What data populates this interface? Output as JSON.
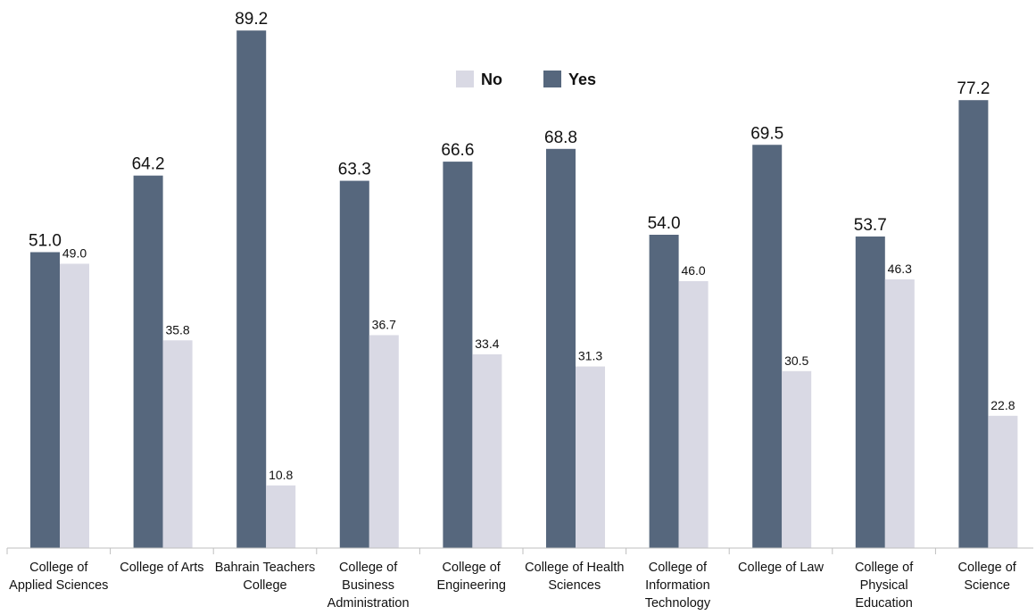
{
  "chart_data": {
    "type": "bar",
    "title": "",
    "xlabel": "",
    "ylabel": "",
    "ylim": [
      0,
      92
    ],
    "grid": false,
    "legend_position": "top-center",
    "categories": [
      [
        "College of",
        "Applied Sciences"
      ],
      [
        "College of Arts"
      ],
      [
        "Bahrain Teachers",
        "College"
      ],
      [
        "College of",
        "Business",
        "Administration"
      ],
      [
        "College of",
        "Engineering"
      ],
      [
        "College of Health",
        "Sciences"
      ],
      [
        "College of",
        "Information",
        "Technology"
      ],
      [
        "College of Law"
      ],
      [
        "College of",
        "Physical",
        "Education"
      ],
      [
        "College of",
        "Science"
      ]
    ],
    "series": [
      {
        "name": "Yes",
        "color": "#56677d",
        "values": [
          51.0,
          64.2,
          89.2,
          63.3,
          66.6,
          68.8,
          54.0,
          69.5,
          53.7,
          77.2
        ],
        "labels": [
          "51.0",
          "64.2",
          "89.2",
          "63.3",
          "66.6",
          "68.8",
          "54.0",
          "69.5",
          "53.7",
          "77.2"
        ]
      },
      {
        "name": "No",
        "color": "#d9d9e4",
        "values": [
          49.0,
          35.8,
          10.8,
          36.7,
          33.4,
          31.3,
          46.0,
          30.5,
          46.3,
          22.8
        ],
        "labels": [
          "49.0",
          "35.8",
          "10.8",
          "36.7",
          "33.4",
          "31.3",
          "46.0",
          "30.5",
          "46.3",
          "22.8"
        ]
      }
    ],
    "legend": [
      {
        "label": "No",
        "color": "#d9d9e4"
      },
      {
        "label": "Yes",
        "color": "#56677d"
      }
    ]
  }
}
